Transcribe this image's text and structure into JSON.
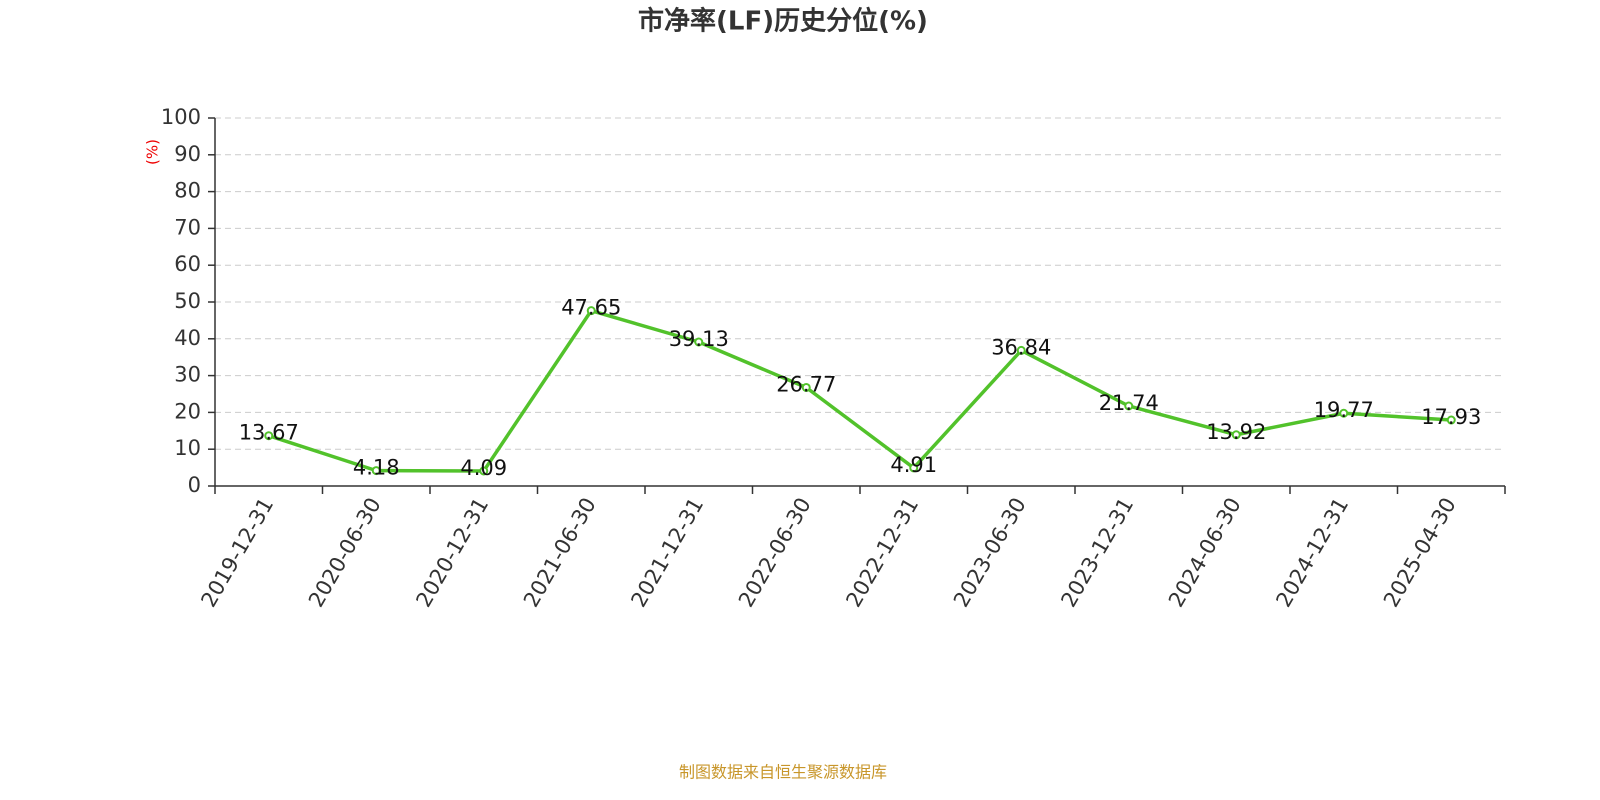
{
  "chart_data": {
    "type": "line",
    "title": "市净率(LF)历史分位(%)",
    "y_label": "(%)",
    "source": "制图数据来自恒生聚源数据库",
    "categories": [
      "2019-12-31",
      "2020-06-30",
      "2020-12-31",
      "2021-06-30",
      "2021-12-31",
      "2022-06-30",
      "2022-12-31",
      "2023-06-30",
      "2023-12-31",
      "2024-06-30",
      "2024-12-31",
      "2025-04-30"
    ],
    "values": [
      13.67,
      4.18,
      4.09,
      47.65,
      39.13,
      26.77,
      4.91,
      36.84,
      21.74,
      13.92,
      19.77,
      17.93
    ],
    "color": "#52c22b",
    "ylim": [
      0,
      100
    ],
    "yticks": [
      0,
      10,
      20,
      30,
      40,
      50,
      60,
      70,
      80,
      90,
      100
    ],
    "grid": true
  }
}
